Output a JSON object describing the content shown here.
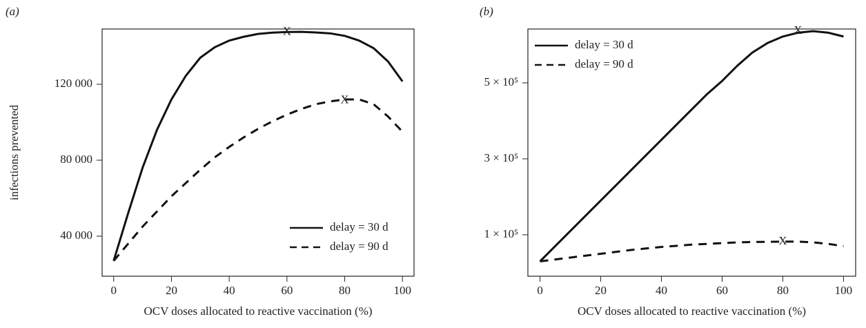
{
  "chart_data": [
    {
      "type": "line",
      "panel_label": "(a)",
      "xlabel": "OCV doses allocated to reactive vaccination (%)",
      "ylabel": "infections prevented",
      "x": [
        0,
        5,
        10,
        15,
        20,
        25,
        30,
        35,
        40,
        45,
        50,
        55,
        60,
        65,
        70,
        75,
        80,
        85,
        90,
        95,
        100
      ],
      "series": [
        {
          "name": "delay = 30 d",
          "color": "#111111",
          "linestyle": "solid",
          "values": [
            27000,
            52000,
            76000,
            96000,
            112000,
            124500,
            134000,
            139500,
            143000,
            145000,
            146500,
            147200,
            147500,
            147600,
            147300,
            146800,
            145500,
            143000,
            139000,
            132000,
            121500
          ]
        },
        {
          "name": "delay = 90 d",
          "color": "#111111",
          "linestyle": "dashed",
          "values": [
            27000,
            36000,
            45000,
            53000,
            61000,
            68000,
            75000,
            81500,
            87000,
            92000,
            96500,
            100500,
            104000,
            107000,
            109500,
            111000,
            112000,
            112000,
            109500,
            103000,
            95000
          ]
        }
      ],
      "annotations": [
        {
          "text": "X",
          "x": 60,
          "y": 147500
        },
        {
          "text": "X",
          "x": 80,
          "y": 111500
        }
      ],
      "xlim": [
        -4,
        104
      ],
      "ylim": [
        18900,
        149100
      ],
      "xticks": [
        0,
        20,
        40,
        60,
        80,
        100
      ],
      "yticks": [
        {
          "value": 40000,
          "label": "40 000"
        },
        {
          "value": 80000,
          "label": "80 000"
        },
        {
          "value": 120000,
          "label": "120 000"
        }
      ],
      "legend": "lower right"
    },
    {
      "type": "line",
      "panel_label": "(b)",
      "xlabel": "OCV doses allocated to reactive vaccination (%)",
      "x": [
        0,
        5,
        10,
        15,
        20,
        25,
        30,
        35,
        40,
        45,
        50,
        55,
        60,
        65,
        70,
        75,
        80,
        85,
        90,
        95,
        100
      ],
      "series": [
        {
          "name": "delay = 30 d",
          "color": "#111111",
          "linestyle": "solid",
          "values": [
            30000,
            70000,
            110000,
            150000,
            190000,
            230000,
            270000,
            310000,
            350000,
            390000,
            430000,
            470000,
            505000,
            545000,
            580000,
            605000,
            622000,
            632000,
            636000,
            632000,
            622000
          ]
        },
        {
          "name": "delay = 90 d",
          "color": "#111111",
          "linestyle": "dashed",
          "values": [
            30000,
            35000,
            40000,
            45000,
            50000,
            55000,
            60000,
            64000,
            68000,
            71000,
            74000,
            76000,
            78000,
            80000,
            81000,
            81500,
            82000,
            82000,
            80000,
            76000,
            70000
          ]
        }
      ],
      "annotations": [
        {
          "text": "X",
          "x": 85,
          "y": 636000
        },
        {
          "text": "X",
          "x": 80,
          "y": 82000
        }
      ],
      "xlim": [
        -4,
        104
      ],
      "ylim": [
        -9100,
        641800
      ],
      "xticks": [
        0,
        20,
        40,
        60,
        80,
        100
      ],
      "yticks": [
        {
          "value": 100000,
          "label": "1 × 10⁵"
        },
        {
          "value": 300000,
          "label": "3 × 10⁵"
        },
        {
          "value": 500000,
          "label": "5 × 10⁵"
        }
      ],
      "legend": "upper left"
    }
  ]
}
